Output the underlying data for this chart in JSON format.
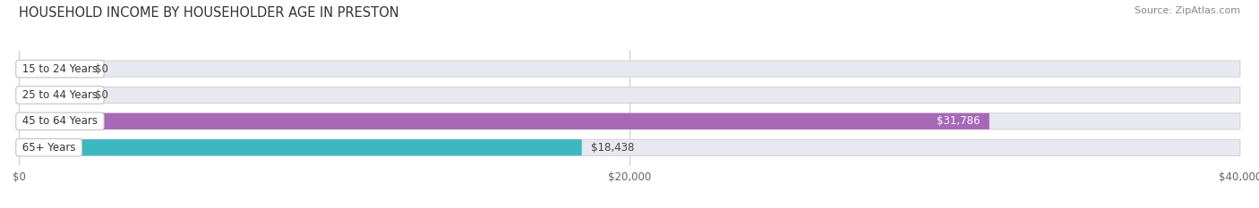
{
  "title": "HOUSEHOLD INCOME BY HOUSEHOLDER AGE IN PRESTON",
  "source": "Source: ZipAtlas.com",
  "categories": [
    "15 to 24 Years",
    "25 to 44 Years",
    "45 to 64 Years",
    "65+ Years"
  ],
  "values": [
    0,
    0,
    31786,
    18438
  ],
  "bar_colors": [
    "#f0a0a8",
    "#a8b8e8",
    "#a868b8",
    "#3db8c0"
  ],
  "background_color": "#ffffff",
  "bar_background": "#e8e8f0",
  "xlim": [
    0,
    40000
  ],
  "xticks": [
    0,
    20000,
    40000
  ],
  "xtick_labels": [
    "$0",
    "$20,000",
    "$40,000"
  ],
  "title_fontsize": 10.5,
  "source_fontsize": 8,
  "bar_height": 0.62,
  "label_fontsize": 8.5,
  "category_fontsize": 8.5,
  "value_label_inside_color": "#ffffff",
  "value_label_outside_color": "#444444",
  "grid_color": "#cccccc",
  "category_box_color": "#ffffff",
  "category_text_color": "#333333"
}
